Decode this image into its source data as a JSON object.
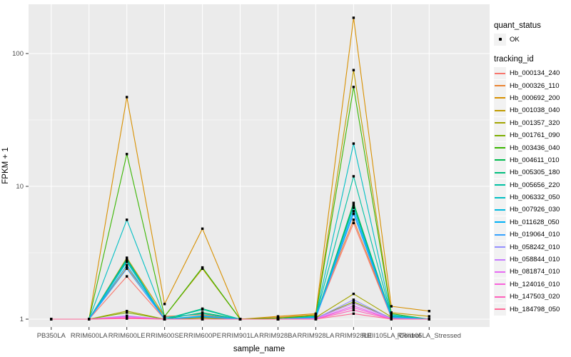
{
  "figure": {
    "kind": "ggplot2 line chart",
    "background": "#FFFFFF"
  },
  "legend": {
    "quant_status": {
      "title": "quant_status",
      "items": [
        {
          "label": "OK",
          "marker": "black-point"
        }
      ]
    },
    "tracking": {
      "title": "tracking_id"
    }
  },
  "colors": {
    "panel_bg": "#EBEBEB",
    "grid": "#FFFFFF",
    "legend_key_bg": "#F2F2F2",
    "tick_text": "#4D4D4D",
    "tick_mark": "#333333",
    "axis_title_text": "#000000",
    "point": "#000000"
  },
  "chart_data": {
    "type": "line",
    "title": "",
    "xlabel": "sample_name",
    "ylabel": "FPKM + 1",
    "y_scale": "log10",
    "y_ticks": [
      1,
      10,
      100
    ],
    "ylim": [
      0.93,
      230
    ],
    "grid": "major-and-minor-white-on-grey",
    "legend_position": "right",
    "point_marker": "small black square on every data point",
    "categories": [
      "PB350LA",
      "RRIM600LA",
      "RRIM600LE",
      "RRIM600SE",
      "RRIM600PE",
      "RRIM901LA",
      "RRIM928BA",
      "RRIM928LA",
      "RRIM928LE",
      "RRII105LA_Control",
      "RRII105LA_Stressed"
    ],
    "series": [
      {
        "name": "Hb_000134_240",
        "color": "#F8766D",
        "values": [
          1,
          1,
          2.1,
          1,
          1.05,
          1,
          1.02,
          1.05,
          5.3,
          1.03,
          1
        ]
      },
      {
        "name": "Hb_000326_110",
        "color": "#EA8331",
        "values": [
          1,
          1,
          2.45,
          1.05,
          1.08,
          1,
          1.03,
          1.08,
          5.6,
          1.05,
          1
        ]
      },
      {
        "name": "Hb_000692_200",
        "color": "#D89000",
        "values": [
          1,
          1,
          47,
          1.3,
          4.8,
          1,
          1.05,
          1.1,
          186,
          1.25,
          1.15
        ]
      },
      {
        "name": "Hb_001038_040",
        "color": "#C09B00",
        "values": [
          1,
          1,
          2.9,
          1.05,
          2.4,
          1,
          1.02,
          1.08,
          75,
          1.12,
          1.05
        ]
      },
      {
        "name": "Hb_001357_320",
        "color": "#A3A500",
        "values": [
          1,
          1,
          1.15,
          1,
          1.03,
          1,
          1,
          1.03,
          1.55,
          1.04,
          1
        ]
      },
      {
        "name": "Hb_001761_090",
        "color": "#7CAE00",
        "values": [
          1,
          1,
          1.12,
          1,
          1.02,
          1,
          1,
          1.02,
          1.35,
          1.02,
          1
        ]
      },
      {
        "name": "Hb_003436_040",
        "color": "#39B600",
        "values": [
          1,
          1,
          17.5,
          1.05,
          2.45,
          1,
          1.02,
          1.06,
          56,
          1.1,
          1
        ]
      },
      {
        "name": "Hb_004611_010",
        "color": "#00BB4E",
        "values": [
          1,
          1,
          2.8,
          1,
          1.12,
          1,
          1,
          1.03,
          7.5,
          1.05,
          1
        ]
      },
      {
        "name": "Hb_005305_180",
        "color": "#00BF7D",
        "values": [
          1,
          1,
          2.85,
          1,
          1.2,
          1,
          1,
          1.04,
          7.2,
          1.05,
          1
        ]
      },
      {
        "name": "Hb_005656_220",
        "color": "#00C1A3",
        "values": [
          1,
          1,
          2.7,
          1,
          1.18,
          1,
          1,
          1.05,
          11.9,
          1.06,
          1
        ]
      },
      {
        "name": "Hb_006332_050",
        "color": "#00BFC4",
        "values": [
          1,
          1,
          5.6,
          1.03,
          1.1,
          1,
          1,
          1.05,
          21,
          1.08,
          1
        ]
      },
      {
        "name": "Hb_007926_030",
        "color": "#00BAE0",
        "values": [
          1,
          1,
          2.75,
          1,
          1.06,
          1,
          1,
          1.03,
          6.9,
          1.04,
          1
        ]
      },
      {
        "name": "Hb_011628_050",
        "color": "#00B0F6",
        "values": [
          1,
          1,
          2.55,
          1,
          1.05,
          1,
          1,
          1.02,
          6.5,
          1.04,
          1
        ]
      },
      {
        "name": "Hb_019064_010",
        "color": "#35A2FF",
        "values": [
          1,
          1,
          2.4,
          1,
          1.04,
          1,
          1,
          1.02,
          6.2,
          1.03,
          1
        ]
      },
      {
        "name": "Hb_058242_010",
        "color": "#9590FF",
        "values": [
          1,
          1,
          1.06,
          1,
          1,
          1,
          1,
          1.01,
          1.4,
          1.01,
          1
        ]
      },
      {
        "name": "Hb_058844_010",
        "color": "#C77CFF",
        "values": [
          1,
          1,
          1.05,
          1,
          1,
          1,
          1,
          1.01,
          1.32,
          1.01,
          1
        ]
      },
      {
        "name": "Hb_081874_010",
        "color": "#E76BF3",
        "values": [
          1,
          1,
          1.05,
          1,
          1,
          1,
          1,
          1,
          1.26,
          1,
          1
        ]
      },
      {
        "name": "Hb_124016_010",
        "color": "#FA62DB",
        "values": [
          1,
          1,
          1.03,
          1,
          1,
          1,
          1,
          1,
          1.22,
          1,
          1
        ]
      },
      {
        "name": "Hb_147503_020",
        "color": "#FF62BC",
        "values": [
          1,
          1,
          1.02,
          1,
          1,
          1,
          1,
          1,
          1.17,
          1,
          1
        ]
      },
      {
        "name": "Hb_184798_050",
        "color": "#FF6A98",
        "values": [
          1,
          1,
          1.01,
          1,
          1,
          1,
          1,
          1,
          1.1,
          1,
          1
        ]
      }
    ]
  }
}
